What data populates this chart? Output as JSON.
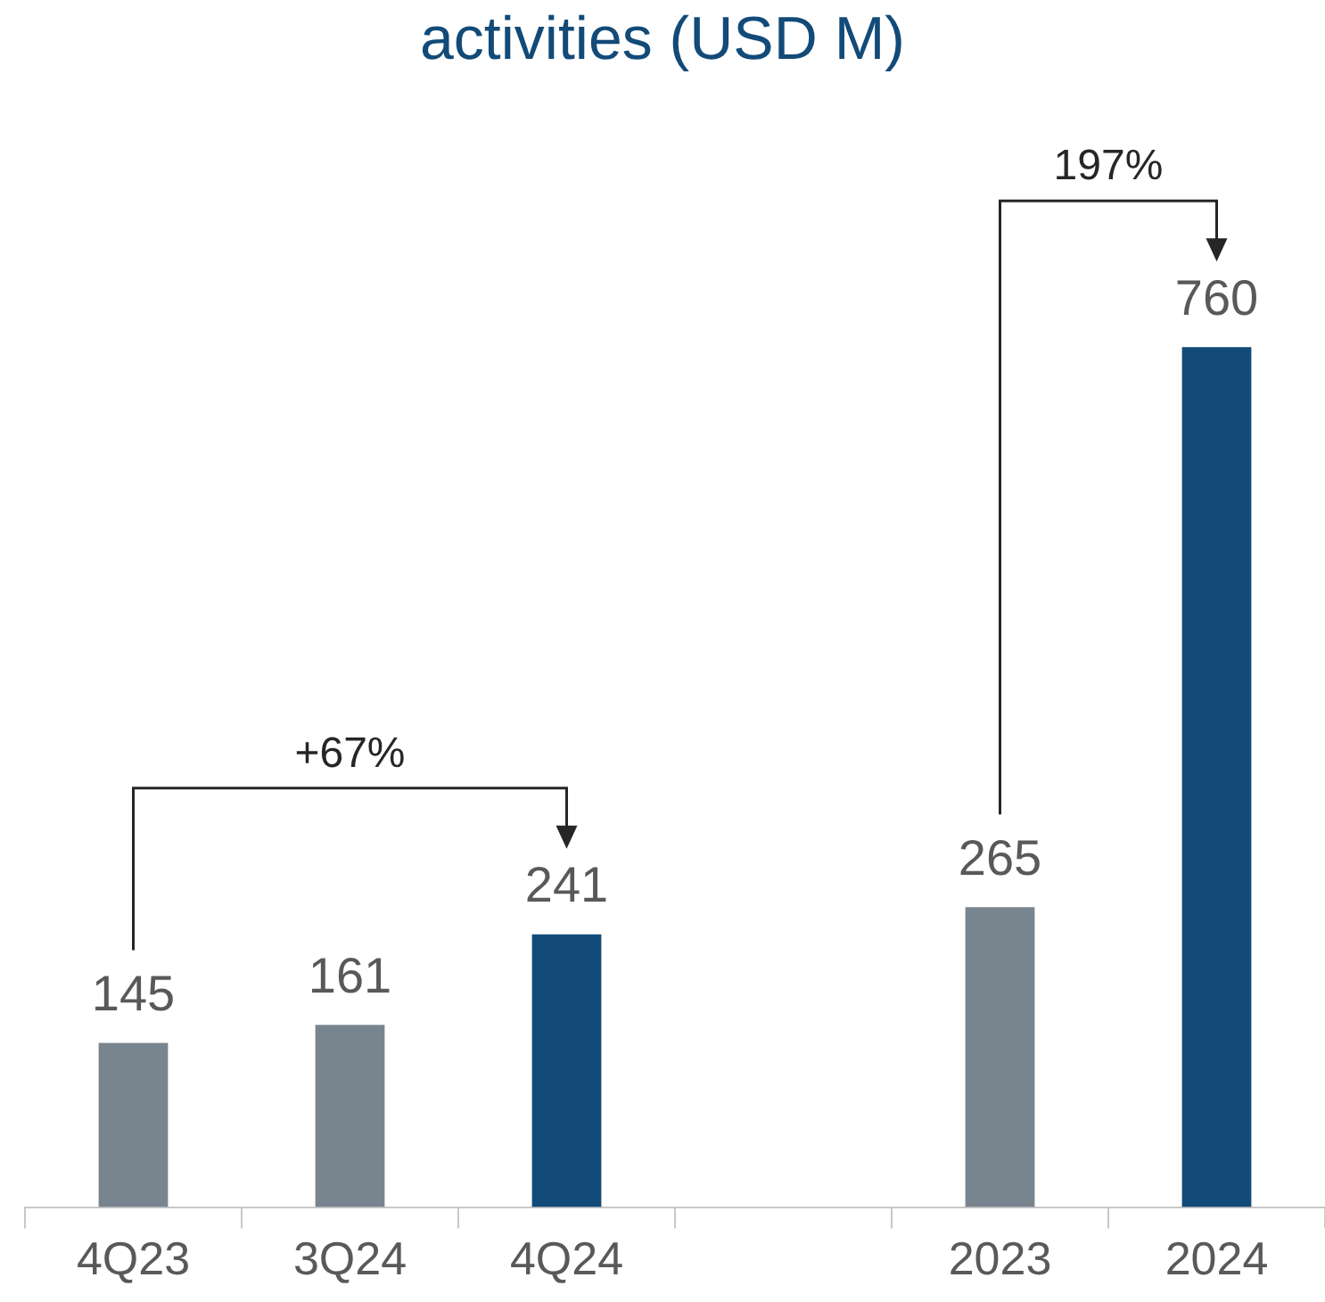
{
  "chart_data": {
    "type": "bar",
    "title": "activities (USD M)",
    "categories": [
      "4Q23",
      "3Q24",
      "4Q24",
      null,
      "2023",
      "2024"
    ],
    "values": [
      145,
      161,
      241,
      null,
      265,
      760
    ],
    "colors": [
      "#78848e",
      "#78848e",
      "#124a78",
      "#78848e",
      "#78848e",
      "#124a78"
    ],
    "data_labels": true,
    "annotations": [
      "+67%",
      "197%"
    ]
  }
}
